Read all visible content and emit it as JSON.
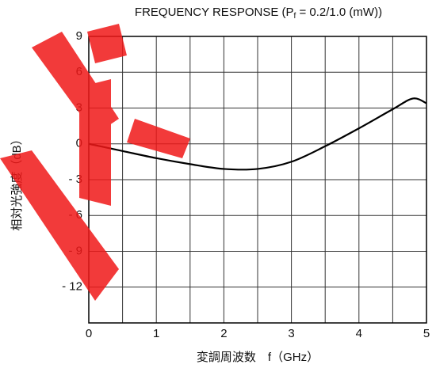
{
  "chart_data": {
    "type": "line",
    "title": [
      "FREQUENCY RESPONSE (P",
      "f",
      " = 0.2/1.0 (mW))"
    ],
    "x_label": "変調周波数　f（GHz）",
    "y_label": "相対光強度（dB）",
    "x": [
      0,
      0.5,
      1,
      1.5,
      2,
      2.5,
      3,
      3.5,
      4,
      4.5,
      4.8,
      5
    ],
    "values": [
      0,
      -0.6,
      -1.2,
      -1.7,
      -2.1,
      -2.1,
      -1.5,
      -0.2,
      1.3,
      2.9,
      3.8,
      3.4
    ],
    "color": "#000000",
    "xlim": [
      0,
      5
    ],
    "xticks": [
      0,
      1,
      2,
      3,
      4,
      5
    ],
    "ylim": [
      -15,
      9
    ],
    "yticks": [
      9,
      6,
      3,
      0,
      {
        "value": -3,
        "label": "- 3"
      },
      {
        "value": -6,
        "label": "- 6"
      },
      {
        "value": -9,
        "label": "- 9"
      },
      {
        "value": -12,
        "label": "- 12"
      }
    ],
    "grid": true
  }
}
